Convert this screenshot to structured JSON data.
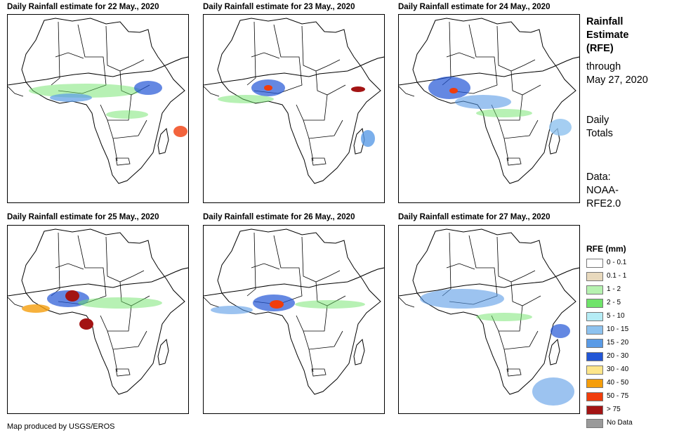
{
  "panels": [
    {
      "title": "Daily Rainfall estimate for 22 May., 2020"
    },
    {
      "title": "Daily Rainfall estimate for 23 May., 2020"
    },
    {
      "title": "Daily Rainfall estimate for 24 May., 2020"
    },
    {
      "title": "Daily Rainfall estimate for 25 May., 2020"
    },
    {
      "title": "Daily Rainfall estimate for 26 May., 2020"
    },
    {
      "title": "Daily Rainfall estimate for 27 May., 2020"
    }
  ],
  "sidebar": {
    "title_line1": "Rainfall",
    "title_line2": "Estimate",
    "title_line3": "(RFE)",
    "through_line1": "through",
    "through_line2": "May 27, 2020",
    "totals_line1": "Daily",
    "totals_line2": "Totals",
    "data_line1": "Data:",
    "data_line2": "NOAA-",
    "data_line3": "RFE2.0"
  },
  "legend": {
    "title": "RFE (mm)",
    "items": [
      {
        "label": "0 - 0.1",
        "color": "#ffffff"
      },
      {
        "label": "0.1 - 1",
        "color": "#e8d9bd"
      },
      {
        "label": "1 - 2",
        "color": "#b6f2b0"
      },
      {
        "label": "2 - 5",
        "color": "#6fe36a"
      },
      {
        "label": "5 - 10",
        "color": "#b5ecf5"
      },
      {
        "label": "10 - 15",
        "color": "#8ec2ef"
      },
      {
        "label": "15 - 20",
        "color": "#5a9be6"
      },
      {
        "label": "20 - 30",
        "color": "#2256d6"
      },
      {
        "label": "30 - 40",
        "color": "#fde68a"
      },
      {
        "label": "40 - 50",
        "color": "#f59e0b"
      },
      {
        "label": "50 - 75",
        "color": "#f03d0c"
      },
      {
        "label": "> 75",
        "color": "#a31414"
      },
      {
        "label": "No Data",
        "color": "#9a9a9a"
      }
    ]
  },
  "footer": "Map produced by USGS/EROS"
}
